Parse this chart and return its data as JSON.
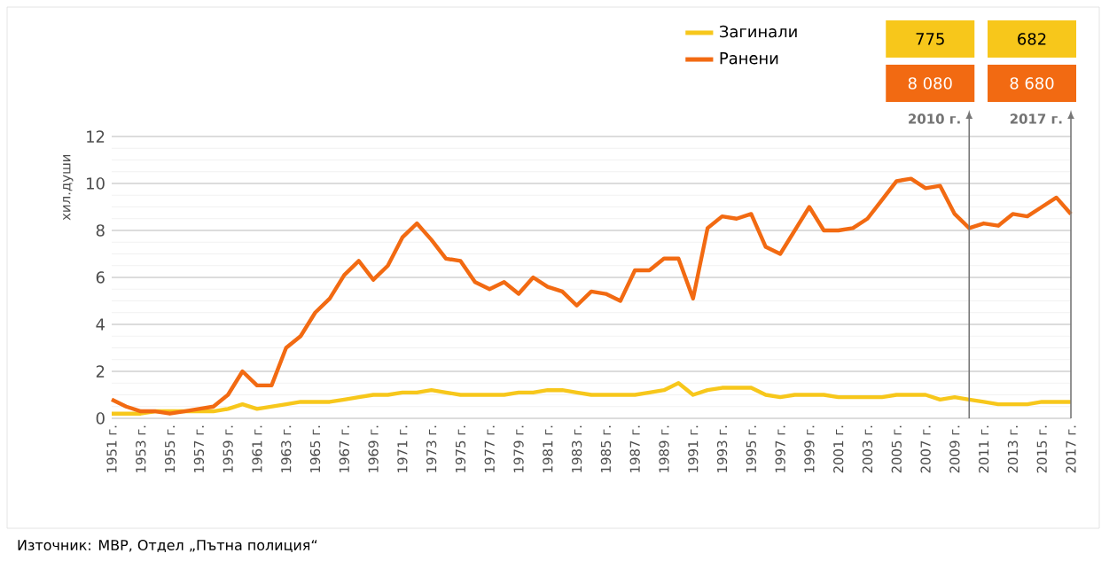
{
  "chart_data": {
    "type": "line",
    "ylabel": "хил.души",
    "legend": "top",
    "grid": "y",
    "line_style": "solid",
    "marker": "none",
    "x": [
      1951,
      1952,
      1953,
      1954,
      1955,
      1956,
      1957,
      1958,
      1959,
      1960,
      1961,
      1962,
      1963,
      1964,
      1965,
      1966,
      1967,
      1968,
      1969,
      1970,
      1971,
      1972,
      1973,
      1974,
      1975,
      1976,
      1977,
      1978,
      1979,
      1980,
      1981,
      1982,
      1983,
      1984,
      1985,
      1986,
      1987,
      1988,
      1989,
      1990,
      1991,
      1992,
      1993,
      1994,
      1995,
      1996,
      1997,
      1998,
      1999,
      2000,
      2001,
      2002,
      2003,
      2004,
      2005,
      2006,
      2007,
      2008,
      2009,
      2010,
      2011,
      2012,
      2013,
      2014,
      2015,
      2016,
      2017
    ],
    "xlim": [
      1951,
      2017
    ],
    "xticks": [
      {
        "value": 1951,
        "label": "1951 г."
      },
      {
        "value": 1953,
        "label": "1953 г."
      },
      {
        "value": 1955,
        "label": "1955 г."
      },
      {
        "value": 1957,
        "label": "1957 г."
      },
      {
        "value": 1959,
        "label": "1959 г."
      },
      {
        "value": 1961,
        "label": "1961 г."
      },
      {
        "value": 1963,
        "label": "1963 г."
      },
      {
        "value": 1965,
        "label": "1965 г."
      },
      {
        "value": 1967,
        "label": "1967 г."
      },
      {
        "value": 1969,
        "label": "1969 г."
      },
      {
        "value": 1971,
        "label": "1971 г."
      },
      {
        "value": 1973,
        "label": "1973 г."
      },
      {
        "value": 1975,
        "label": "1975 г."
      },
      {
        "value": 1977,
        "label": "1977 г."
      },
      {
        "value": 1979,
        "label": "1979 г."
      },
      {
        "value": 1981,
        "label": "1981 г."
      },
      {
        "value": 1983,
        "label": "1983 г."
      },
      {
        "value": 1985,
        "label": "1985 г."
      },
      {
        "value": 1987,
        "label": "1987 г."
      },
      {
        "value": 1989,
        "label": "1989 г."
      },
      {
        "value": 1991,
        "label": "1991 г."
      },
      {
        "value": 1993,
        "label": "1993 г."
      },
      {
        "value": 1995,
        "label": "1995 г."
      },
      {
        "value": 1997,
        "label": "1997 г."
      },
      {
        "value": 1999,
        "label": "1999 г."
      },
      {
        "value": 2001,
        "label": "2001 г."
      },
      {
        "value": 2003,
        "label": "2003 г."
      },
      {
        "value": 2005,
        "label": "2005 г."
      },
      {
        "value": 2007,
        "label": "2007 г."
      },
      {
        "value": 2009,
        "label": "2009 г."
      },
      {
        "value": 2011,
        "label": "2011 г."
      },
      {
        "value": 2013,
        "label": "2013 г."
      },
      {
        "value": 2015,
        "label": "2015 г."
      },
      {
        "value": 2017,
        "label": "2017 г."
      }
    ],
    "ylim": [
      0,
      12
    ],
    "yticks": [
      0,
      2,
      4,
      6,
      8,
      10,
      12
    ],
    "series": [
      {
        "name": "Загинали",
        "color": "#f7c71b",
        "values": [
          0.2,
          0.2,
          0.2,
          0.3,
          0.3,
          0.3,
          0.3,
          0.3,
          0.4,
          0.6,
          0.4,
          0.5,
          0.6,
          0.7,
          0.7,
          0.7,
          0.8,
          0.9,
          1.0,
          1.0,
          1.1,
          1.1,
          1.2,
          1.1,
          1.0,
          1.0,
          1.0,
          1.0,
          1.1,
          1.1,
          1.2,
          1.2,
          1.1,
          1.0,
          1.0,
          1.0,
          1.0,
          1.1,
          1.2,
          1.5,
          1.0,
          1.2,
          1.3,
          1.3,
          1.3,
          1.0,
          0.9,
          1.0,
          1.0,
          1.0,
          0.9,
          0.9,
          0.9,
          0.9,
          1.0,
          1.0,
          1.0,
          0.8,
          0.9,
          0.8,
          0.7,
          0.6,
          0.6,
          0.6,
          0.7,
          0.7,
          0.7
        ]
      },
      {
        "name": "Ранени",
        "color": "#f26a12",
        "values": [
          0.8,
          0.5,
          0.3,
          0.3,
          0.2,
          0.3,
          0.4,
          0.5,
          1.0,
          2.0,
          1.4,
          1.4,
          3.0,
          3.5,
          4.5,
          5.1,
          6.1,
          6.7,
          5.9,
          6.5,
          7.7,
          8.3,
          7.6,
          6.8,
          6.7,
          5.8,
          5.5,
          5.8,
          5.3,
          6.0,
          5.6,
          5.4,
          4.8,
          5.4,
          5.3,
          5.0,
          6.3,
          6.3,
          6.8,
          6.8,
          5.1,
          8.1,
          8.6,
          8.5,
          8.7,
          7.3,
          7.0,
          8.0,
          9.0,
          8.0,
          8.0,
          8.1,
          8.5,
          9.3,
          10.1,
          10.2,
          9.8,
          9.9,
          8.7,
          8.1,
          8.3,
          8.2,
          8.7,
          8.6,
          9.0,
          9.4,
          8.7
        ]
      }
    ],
    "ref_lines": [
      {
        "axis": "x",
        "value": 2010,
        "label": "2010 г.",
        "color": "#777777"
      },
      {
        "axis": "x",
        "value": 2017,
        "label": "2017 г.",
        "color": "#777777"
      }
    ],
    "annotations": [
      "775",
      "8 080",
      "682",
      "8 680",
      "Източник: МВР, Отдел „Пътна полиция“"
    ]
  }
}
